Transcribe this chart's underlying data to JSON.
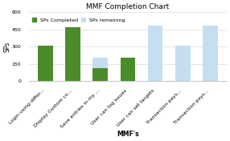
{
  "title": "MMF Completion Chart",
  "xlabel": "MMF's",
  "ylabel": "SPs",
  "categories": [
    "Login using differ...",
    "Display Custom co...",
    "Save entries in my ...",
    "User can log issues",
    "User can set targets",
    "Transaction pays...",
    "Transaction pays..."
  ],
  "completed": [
    310,
    470,
    110,
    200,
    0,
    0,
    0
  ],
  "total": [
    310,
    470,
    200,
    200,
    480,
    310,
    480
  ],
  "color_completed": "#4a8c2a",
  "color_remaining": "#c5dff0",
  "ylim": [
    0,
    600
  ],
  "yticks": [
    0,
    150,
    300,
    450,
    600
  ],
  "title_fontsize": 6.5,
  "axis_fontsize": 5.5,
  "tick_fontsize": 4.5,
  "legend_fontsize": 4.5,
  "background_color": "#ffffff",
  "grid_color": "#d0d0d0"
}
